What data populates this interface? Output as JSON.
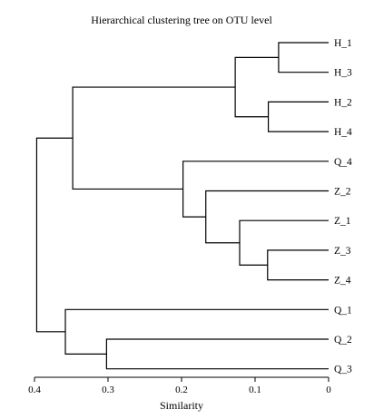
{
  "title": "Hierarchical clustering tree on OTU level",
  "axis": {
    "label": "Similarity",
    "min": 0,
    "max": 0.4,
    "reversed": true,
    "ticks": [
      0.4,
      0.3,
      0.2,
      0.1,
      0
    ]
  },
  "leaves": [
    "H_1",
    "H_3",
    "H_2",
    "H_4",
    "Q_4",
    "Z_2",
    "Z_1",
    "Z_3",
    "Z_4",
    "Q_1",
    "Q_2",
    "Q_3"
  ],
  "merges": [
    {
      "id": "n1",
      "left": "H_1",
      "right": "H_3",
      "height": 0.068
    },
    {
      "id": "n2",
      "left": "H_2",
      "right": "H_4",
      "height": 0.082
    },
    {
      "id": "n3",
      "left": "n1",
      "right": "n2",
      "height": 0.127
    },
    {
      "id": "n4",
      "left": "Z_3",
      "right": "Z_4",
      "height": 0.083
    },
    {
      "id": "n5",
      "left": "Z_1",
      "right": "n4",
      "height": 0.121
    },
    {
      "id": "n6",
      "left": "Z_2",
      "right": "n5",
      "height": 0.167
    },
    {
      "id": "n7",
      "left": "Q_4",
      "right": "n6",
      "height": 0.198
    },
    {
      "id": "n8",
      "left": "n3",
      "right": "n7",
      "height": 0.348
    },
    {
      "id": "n9",
      "left": "Q_2",
      "right": "Q_3",
      "height": 0.302
    },
    {
      "id": "n10",
      "left": "Q_1",
      "right": "n9",
      "height": 0.358
    },
    {
      "id": "n11",
      "left": "n8",
      "right": "n10",
      "height": 0.397
    }
  ]
}
